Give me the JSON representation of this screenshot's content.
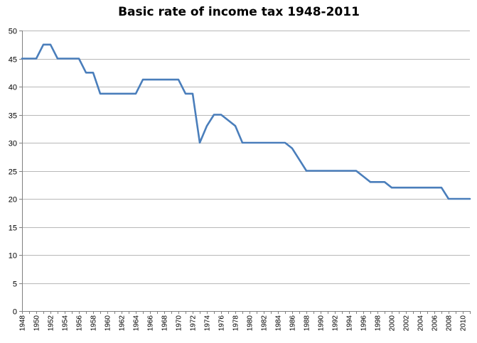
{
  "chart_data": {
    "type": "line",
    "title": "Basic rate of income tax 1948-2011",
    "xlabel": "",
    "ylabel": "",
    "ylim": [
      0,
      50
    ],
    "yticks": [
      "0",
      "5",
      "10",
      "15",
      "20",
      "25",
      "30",
      "35",
      "40",
      "45",
      "50"
    ],
    "xticks": [
      "1948",
      "1950",
      "1952",
      "1954",
      "1956",
      "1958",
      "1960",
      "1962",
      "1964",
      "1966",
      "1968",
      "1970",
      "1972",
      "1974",
      "1976",
      "1978",
      "1980",
      "1982",
      "1984",
      "1986",
      "1988",
      "1990",
      "1992",
      "1994",
      "1996",
      "1998",
      "2000",
      "2002",
      "2004",
      "2006",
      "2008",
      "2010"
    ],
    "xlim": [
      1948,
      2011
    ],
    "grid": true,
    "legend": "none",
    "color": "#4a7ebb",
    "series": [
      {
        "x": [
          1948,
          1949,
          1950,
          1951,
          1952,
          1953,
          1954,
          1955,
          1956,
          1957,
          1958,
          1959,
          1960,
          1961,
          1962,
          1963,
          1964,
          1965,
          1966,
          1967,
          1968,
          1969,
          1970,
          1971,
          1972,
          1973,
          1974,
          1975,
          1976,
          1977,
          1978,
          1979,
          1980,
          1981,
          1982,
          1983,
          1984,
          1985,
          1986,
          1987,
          1988,
          1989,
          1990,
          1991,
          1992,
          1993,
          1994,
          1995,
          1996,
          1997,
          1998,
          1999,
          2000,
          2001,
          2002,
          2003,
          2004,
          2005,
          2006,
          2007,
          2008,
          2009,
          2010,
          2011
        ],
        "values": [
          45,
          45,
          45,
          47.5,
          47.5,
          45,
          45,
          45,
          45,
          42.5,
          42.5,
          38.75,
          38.75,
          38.75,
          38.75,
          38.75,
          38.75,
          41.25,
          41.25,
          41.25,
          41.25,
          41.25,
          41.25,
          38.75,
          38.75,
          30,
          33,
          35,
          35,
          34,
          33,
          30,
          30,
          30,
          30,
          30,
          30,
          30,
          29,
          27,
          25,
          25,
          25,
          25,
          25,
          25,
          25,
          25,
          24,
          23,
          23,
          23,
          22,
          22,
          22,
          22,
          22,
          22,
          22,
          22,
          20,
          20,
          20,
          20
        ]
      }
    ]
  }
}
